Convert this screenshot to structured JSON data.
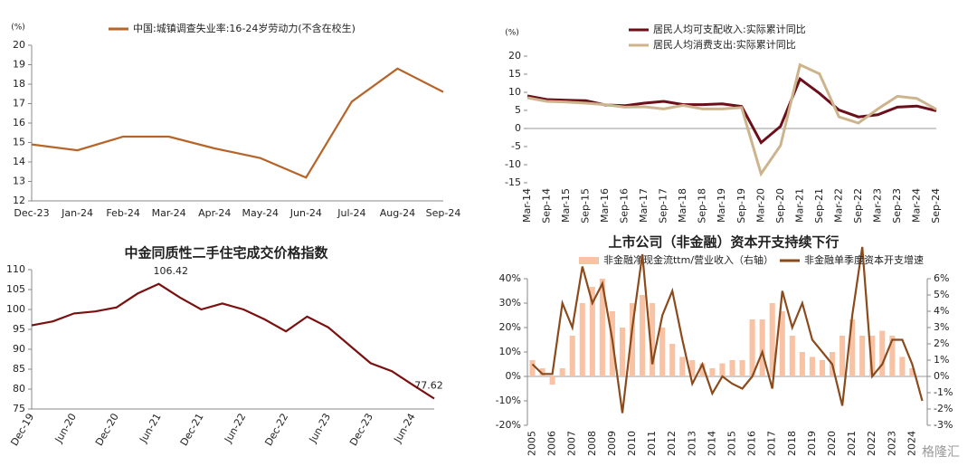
{
  "chart_data": [
    {
      "type": "line",
      "y_unit": "(%)",
      "categories": [
        "Dec-23",
        "Jan-24",
        "Feb-24",
        "Mar-24",
        "Apr-24",
        "May-24",
        "Jun-24",
        "Jul-24",
        "Aug-24",
        "Sep-24"
      ],
      "series": [
        {
          "name": "中国:城镇调查失业率:16-24岁劳动力(不含在校生)",
          "color": "#b5652a",
          "values": [
            14.9,
            14.6,
            15.3,
            15.3,
            14.7,
            14.2,
            13.2,
            17.1,
            18.8,
            17.6
          ]
        }
      ],
      "ylim": [
        12,
        20
      ],
      "yticks": [
        12,
        13,
        14,
        15,
        16,
        17,
        18,
        19,
        20
      ]
    },
    {
      "type": "line",
      "y_unit": "(%)",
      "categories": [
        "Mar-14",
        "Sep-14",
        "Mar-15",
        "Sep-15",
        "Mar-16",
        "Sep-16",
        "Mar-17",
        "Sep-17",
        "Mar-18",
        "Sep-18",
        "Mar-19",
        "Sep-19",
        "Mar-20",
        "Sep-20",
        "Mar-21",
        "Sep-21",
        "Mar-22",
        "Sep-22",
        "Mar-23",
        "Sep-23",
        "Mar-24",
        "Sep-24"
      ],
      "series": [
        {
          "name": "居民人均可支配收入:实际累计同比",
          "color": "#6b0f1a",
          "values": [
            9.0,
            8.0,
            7.8,
            7.7,
            6.5,
            6.3,
            7.0,
            7.5,
            6.6,
            6.6,
            6.8,
            6.1,
            -3.9,
            0.6,
            13.7,
            9.7,
            5.1,
            3.2,
            3.8,
            5.9,
            6.2,
            4.9
          ]
        },
        {
          "name": "居民人均消费支出:实际累计同比",
          "color": "#cdb48c",
          "values": [
            8.5,
            7.5,
            7.3,
            7.0,
            6.6,
            5.9,
            6.0,
            5.4,
            6.4,
            5.4,
            5.4,
            5.8,
            -12.5,
            -4.7,
            17.6,
            15.1,
            3.2,
            1.5,
            5.4,
            8.9,
            8.3,
            5.3
          ]
        }
      ],
      "ylim": [
        -15,
        20
      ],
      "yticks": [
        -15,
        -10,
        -5,
        0,
        5,
        10,
        15,
        20
      ]
    },
    {
      "type": "line",
      "title": "中金同质性二手住宅成交价格指数",
      "categories": [
        "Dec-19",
        null,
        "Jun-20",
        null,
        "Dec-20",
        null,
        "Jun-21",
        null,
        "Dec-21",
        null,
        "Jun-22",
        null,
        "Dec-22",
        null,
        "Jun-23",
        null,
        "Dec-23",
        null,
        "Jun-24",
        null
      ],
      "series": [
        {
          "name": "中金同质性二手住宅成交价格指数",
          "color": "#7a1010",
          "values": [
            96,
            97,
            99,
            99.5,
            100.5,
            104,
            106.42,
            103,
            100,
            101.5,
            100,
            97.5,
            94.5,
            98.2,
            95.5,
            91,
            86.5,
            84.5,
            81,
            77.62
          ],
          "value_labels": [
            null,
            null,
            null,
            null,
            null,
            null,
            "106.42",
            null,
            null,
            null,
            null,
            null,
            null,
            null,
            null,
            null,
            null,
            null,
            null,
            "77.62"
          ]
        }
      ],
      "ylim": [
        75,
        110
      ],
      "yticks": [
        75,
        80,
        85,
        90,
        95,
        100,
        105,
        110
      ]
    },
    {
      "type": "combo",
      "title": "上市公司（非金融）资本开支持续下行",
      "categories": [
        "2005",
        null,
        "2006",
        null,
        "2007",
        null,
        "2008",
        null,
        "2009",
        null,
        "2010",
        null,
        "2011",
        null,
        "2012",
        null,
        "2013",
        null,
        "2014",
        null,
        "2015",
        null,
        "2016",
        null,
        "2017",
        null,
        "2018",
        null,
        "2019",
        null,
        "2020",
        null,
        "2021",
        null,
        "2022",
        null,
        "2023",
        null,
        "2024",
        null
      ],
      "series": [
        {
          "name": "非金融净现金流ttm/营业收入（右轴）",
          "type": "bar",
          "axis": "y2",
          "color": "#f8c3a4",
          "values": [
            1.0,
            0.5,
            -0.5,
            0.5,
            2.5,
            4.5,
            5.5,
            6.0,
            4.0,
            3.0,
            4.5,
            5.0,
            4.5,
            3.0,
            2.0,
            1.2,
            1.0,
            0.8,
            0.5,
            0.8,
            1.0,
            1.0,
            3.5,
            3.5,
            4.5,
            4.0,
            2.5,
            1.5,
            1.2,
            1.0,
            1.5,
            2.5,
            3.5,
            2.5,
            2.5,
            2.8,
            2.5,
            1.2,
            0.5,
            0.0
          ]
        },
        {
          "name": "非金融单季度资本开支增速",
          "type": "line",
          "color": "#8b4a1c",
          "values": [
            5,
            1,
            1,
            30,
            20,
            45,
            30,
            38,
            15,
            -15,
            20,
            50,
            5,
            25,
            35,
            15,
            -3,
            5,
            -7,
            0,
            -3,
            -5,
            0,
            10,
            -5,
            35,
            20,
            30,
            15,
            10,
            5,
            -12,
            25,
            53,
            0,
            5,
            15,
            15,
            5,
            -10
          ]
        }
      ],
      "ylim": [
        -20,
        40
      ],
      "yticks": [
        {
          "value": -20,
          "label": "-20%"
        },
        {
          "value": -10,
          "label": "-10%"
        },
        {
          "value": 0,
          "label": "0%"
        },
        {
          "value": 10,
          "label": "10%"
        },
        {
          "value": 20,
          "label": "20%"
        },
        {
          "value": 30,
          "label": "30%"
        },
        {
          "value": 40,
          "label": "40%"
        }
      ],
      "y2lim": [
        -3,
        6
      ],
      "y2ticks": [
        {
          "value": -3,
          "label": "-3%"
        },
        {
          "value": -2,
          "label": "-2%"
        },
        {
          "value": -1,
          "label": "-1%"
        },
        {
          "value": 0,
          "label": "0%"
        },
        {
          "value": 1,
          "label": "1%"
        },
        {
          "value": 2,
          "label": "2%"
        },
        {
          "value": 3,
          "label": "3%"
        },
        {
          "value": 4,
          "label": "4%"
        },
        {
          "value": 5,
          "label": "5%"
        },
        {
          "value": 6,
          "label": "6%"
        }
      ]
    }
  ],
  "watermark": "格隆汇"
}
